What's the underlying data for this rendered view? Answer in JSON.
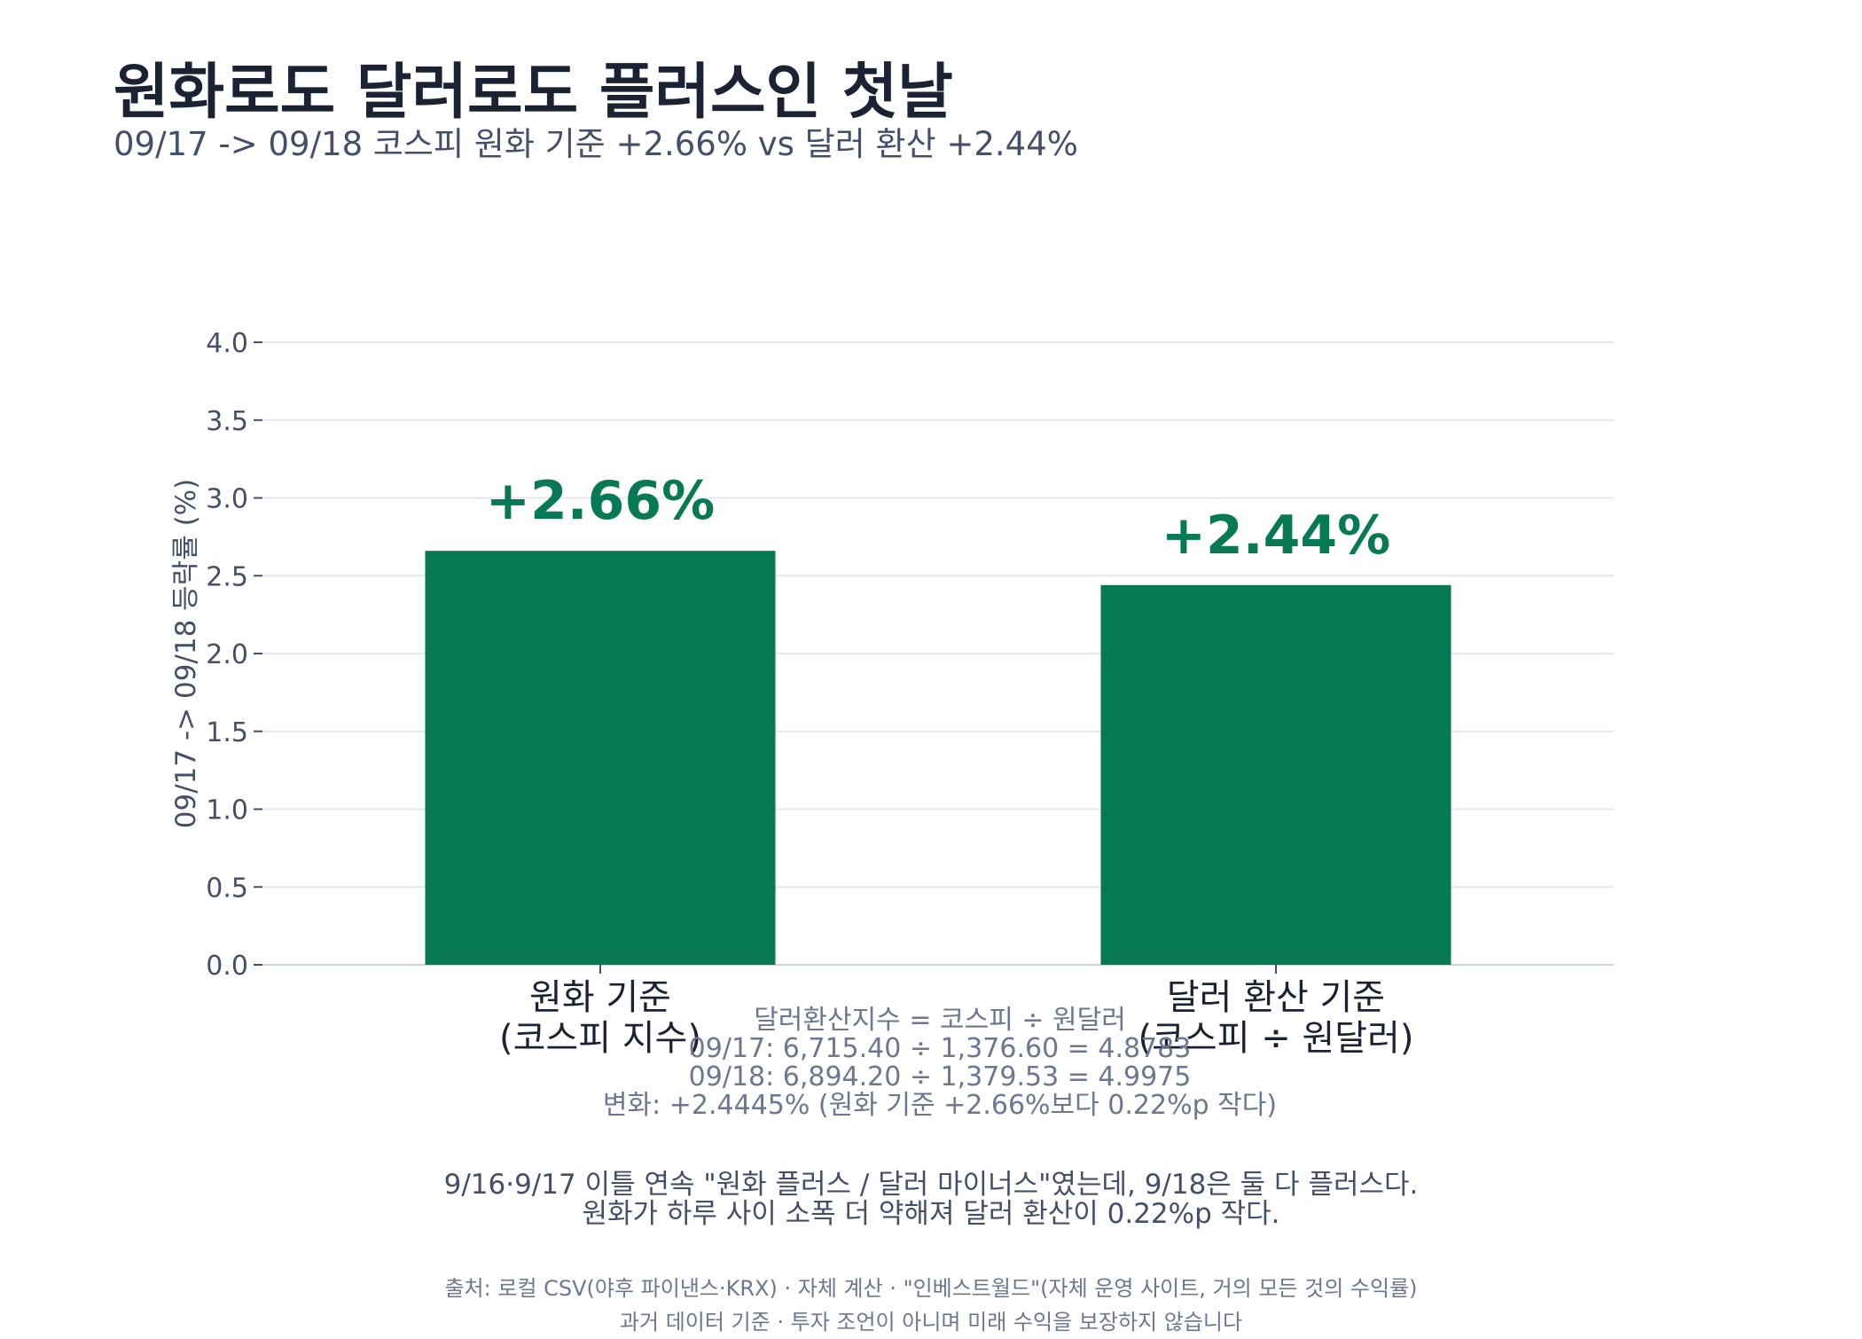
{
  "title": "원화로도 달러로도 플러스인 첫날",
  "subtitle": "09/17 -> 09/18 코스피 원화 기준 +2.66% vs 달러 환산 +2.44%",
  "colors": {
    "bar": "#077a55",
    "label": "#077a55",
    "grid": "#e3e7ee",
    "axis_text": "#44506a",
    "title": "#1a2233"
  },
  "chart_data": {
    "type": "bar",
    "categories": [
      [
        "원화 기준",
        "(코스피 지수)"
      ],
      [
        "달러 환산 기준",
        "(코스피 ÷ 원달러)"
      ]
    ],
    "values": [
      2.66,
      2.44
    ],
    "value_labels": [
      "+2.66%",
      "+2.44%"
    ],
    "ylabel": "09/17 -> 09/18 등락률 (%)",
    "ylim": [
      0,
      4.0
    ],
    "yticks": [
      0.0,
      0.5,
      1.0,
      1.5,
      2.0,
      2.5,
      3.0,
      3.5,
      4.0
    ],
    "ytick_labels": [
      "0.0",
      "0.5",
      "1.0",
      "1.5",
      "2.0",
      "2.5",
      "3.0",
      "3.5",
      "4.0"
    ],
    "grid": true,
    "legend": "none"
  },
  "formula": {
    "line1": "달러환산지수 = 코스피 ÷ 원달러",
    "line2": "09/17: 6,715.40 ÷ 1,376.60 = 4.8783",
    "line3": "09/18: 6,894.20 ÷ 1,379.53 = 4.9975",
    "line4": "변화: +2.4445%  (원화 기준 +2.66%보다 0.22%p 작다)"
  },
  "note": {
    "line1": "9/16·9/17 이틀 연속 \"원화 플러스 / 달러 마이너스\"였는데, 9/18은 둘 다 플러스다.",
    "line2": "원화가 하루 사이 소폭 더 약해져 달러 환산이 0.22%p 작다."
  },
  "footer": {
    "line1": "출처: 로컬 CSV(야후 파이낸스·KRX) · 자체 계산 · \"인베스트월드\"(자체 운영 사이트, 거의 모든 것의 수익률)",
    "line2": "과거 데이터 기준 · 투자 조언이 아니며 미래 수익을 보장하지 않습니다"
  }
}
